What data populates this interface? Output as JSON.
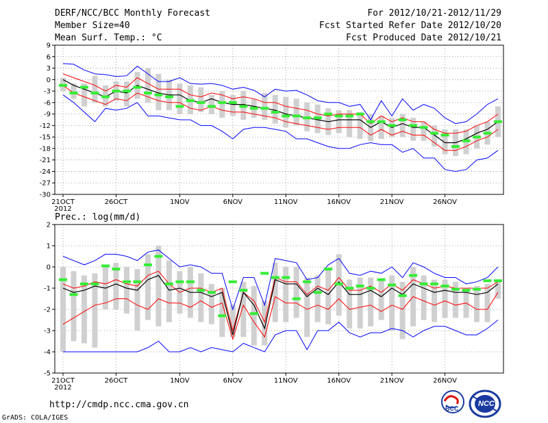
{
  "header": {
    "title": "DERF/NCC/BCC Monthly Forecast",
    "member_size": "Member Size=40",
    "period": "For 2012/10/21-2012/11/29",
    "started": "Fcst Started Refer Date 2012/10/20",
    "produced": "Fcst Produced Date 2012/10/21"
  },
  "footer": {
    "url": "http://cmdp.ncc.cma.gov.cn",
    "credit": "GrADS: COLA/IGES",
    "logo_bcc": "BCC",
    "logo_ncc": "NCC"
  },
  "colors": {
    "envelope": "#0000ff",
    "spread": "#ff0000",
    "mean": "#000000",
    "obs": "#33ee33",
    "box": "#d0d0d0"
  },
  "chart_data": [
    {
      "type": "line",
      "title": "Mean Surf. Temp.: °C",
      "x_start_label": "21OCT",
      "x_start_year": "2012",
      "xtick_labels": [
        "21OCT",
        "26OCT",
        "1NOV",
        "6NOV",
        "11NOV",
        "16NOV",
        "21NOV",
        "26NOV"
      ],
      "xtick_days": [
        0,
        5,
        11,
        16,
        21,
        26,
        31,
        36
      ],
      "ylim": [
        -30,
        9
      ],
      "yticks": [
        9,
        6,
        3,
        0,
        -3,
        -6,
        -9,
        -12,
        -15,
        -18,
        -21,
        -24,
        -27,
        -30
      ],
      "max": [
        4.2,
        4.0,
        2.5,
        1.5,
        1.3,
        0.8,
        1.0,
        3.5,
        1.5,
        -0.5,
        -0.5,
        0.5,
        -1.0,
        -1.2,
        -1.0,
        -1.5,
        -2.5,
        -2.0,
        -2.8,
        -4.5,
        -2.5,
        -3.0,
        -2.8,
        -4.0,
        -5.5,
        -6.0,
        -6.0,
        -7.0,
        -6.5,
        -10.5,
        -5.5,
        -9.5,
        -5.0,
        -8.0,
        -6.5,
        -7.5,
        -10.0,
        -11.5,
        -11.0,
        -9.0,
        -6.5,
        -5.0
      ],
      "upper": [
        1.5,
        0.5,
        -0.5,
        -1.5,
        -3.0,
        -1.5,
        -2.0,
        0.5,
        -1.0,
        -2.5,
        -2.5,
        -2.5,
        -4.0,
        -4.5,
        -3.5,
        -4.0,
        -5.0,
        -4.5,
        -5.0,
        -6.0,
        -6.0,
        -7.0,
        -7.5,
        -8.0,
        -9.0,
        -9.5,
        -9.0,
        -9.0,
        -9.0,
        -11.5,
        -9.5,
        -11.0,
        -10.0,
        -11.0,
        -11.0,
        -13.0,
        -14.0,
        -14.0,
        -13.5,
        -12.0,
        -11.0,
        -9.0
      ],
      "mean": [
        0,
        -1.5,
        -2.5,
        -3.5,
        -4.5,
        -3.0,
        -3.5,
        -1.5,
        -2.5,
        -3.5,
        -4.0,
        -4.0,
        -5.5,
        -6.0,
        -5.0,
        -6.0,
        -6.5,
        -6.5,
        -7.0,
        -7.5,
        -8.0,
        -9.0,
        -9.5,
        -10.0,
        -10.5,
        -11.0,
        -10.5,
        -10.5,
        -10.5,
        -12.5,
        -11.0,
        -12.5,
        -11.5,
        -12.5,
        -12.5,
        -14.5,
        -16.5,
        -16.5,
        -15.5,
        -14.0,
        -13.0,
        -11.0
      ],
      "lower": [
        -1.5,
        -3.5,
        -4.5,
        -5.5,
        -6.5,
        -5.0,
        -5.5,
        -3.5,
        -4.5,
        -5.5,
        -6.0,
        -6.0,
        -7.5,
        -8.0,
        -7.0,
        -8.0,
        -8.5,
        -8.5,
        -9.0,
        -9.5,
        -10.0,
        -11.0,
        -11.5,
        -12.0,
        -12.5,
        -13.0,
        -12.5,
        -12.5,
        -12.5,
        -14.5,
        -13.0,
        -14.5,
        -13.5,
        -14.5,
        -14.5,
        -16.5,
        -18.5,
        -18.5,
        -17.5,
        -16.0,
        -15.0,
        -13.0
      ],
      "min": [
        -4.0,
        -6.0,
        -8.5,
        -11.0,
        -7.5,
        -8.0,
        -7.5,
        -6.0,
        -9.5,
        -9.5,
        -10.0,
        -10.5,
        -10.5,
        -12.0,
        -12.0,
        -13.5,
        -15.5,
        -13.0,
        -12.5,
        -12.5,
        -13.0,
        -13.5,
        -15.5,
        -15.5,
        -16.5,
        -17.5,
        -18.0,
        -18.0,
        -17.0,
        -16.5,
        -17.0,
        -17.0,
        -19.0,
        -18.0,
        -20.5,
        -20.5,
        -23.5,
        -24.0,
        -23.5,
        -21.0,
        -20.5,
        -18.5
      ],
      "box_high": [
        0.5,
        -1.0,
        -1.0,
        1.0,
        -1.5,
        -0.5,
        -0.5,
        2.0,
        3.0,
        1.5,
        0.0,
        -1.0,
        -1.5,
        -2.0,
        -4.0,
        -3.0,
        -4.0,
        -3.0,
        -5.0,
        -3.5,
        -4.0,
        -4.5,
        -5.0,
        -6.0,
        -6.5,
        -7.5,
        -8.0,
        -8.0,
        -8.5,
        -9.0,
        -9.5,
        -10.0,
        -9.0,
        -10.0,
        -11.0,
        -12.0,
        -13.0,
        -13.0,
        -13.0,
        -12.0,
        -11.0,
        -7.0
      ],
      "box_low": [
        -3.0,
        -5.0,
        -7.0,
        -6.0,
        -7.0,
        -5.5,
        -7.0,
        -5.0,
        -6.0,
        -8.0,
        -8.0,
        -9.0,
        -9.0,
        -8.5,
        -9.0,
        -10.0,
        -9.5,
        -10.5,
        -10.0,
        -10.5,
        -11.5,
        -12.5,
        -12.0,
        -13.5,
        -14.0,
        -14.5,
        -14.0,
        -15.0,
        -15.5,
        -16.0,
        -15.5,
        -15.0,
        -15.0,
        -16.0,
        -16.0,
        -17.5,
        -19.5,
        -20.0,
        -19.5,
        -18.0,
        -17.0,
        -15.0
      ],
      "obs": [
        -1.5,
        -3.5,
        -2.0,
        -3.5,
        -4.5,
        -3.0,
        -3.0,
        -2.0,
        -3.5,
        -4.0,
        -4.5,
        -7.0,
        -5.5,
        -6.0,
        -7.0,
        -6.0,
        -6.0,
        -7.0,
        -7.5,
        -7.5,
        -8.5,
        -9.5,
        -9.5,
        -10.0,
        -10.0,
        -9.0,
        -9.5,
        -9.5,
        -9.0,
        -11.0,
        -11.0,
        -12.0,
        -10.5,
        -12.0,
        -12.5,
        -14.0,
        -14.5,
        -17.5,
        -16.0,
        -15.0,
        -14.0,
        -11.0
      ]
    },
    {
      "type": "line",
      "title": "Prec.: log(mm/d)",
      "x_start_label": "21OCT",
      "x_start_year": "2012",
      "xtick_labels": [
        "21OCT",
        "26OCT",
        "1NOV",
        "6NOV",
        "11NOV",
        "16NOV",
        "21NOV",
        "26NOV"
      ],
      "xtick_days": [
        0,
        5,
        11,
        16,
        21,
        26,
        31,
        36
      ],
      "ylim": [
        -5,
        2
      ],
      "yticks": [
        2,
        1,
        0,
        -1,
        -2,
        -3,
        -4,
        -5
      ],
      "max": [
        0.5,
        0.3,
        0.1,
        0.3,
        0.6,
        0.6,
        0.5,
        0.3,
        0.7,
        0.8,
        0.4,
        0,
        0.1,
        0,
        -0.3,
        -0.3,
        -2.0,
        -0.5,
        -0.5,
        -1.8,
        0.4,
        0.3,
        0.2,
        -0.6,
        -0.5,
        0.1,
        0.4,
        -0.3,
        -0.4,
        -0.2,
        -0.3,
        0,
        -0.5,
        0.2,
        0,
        -0.3,
        -0.5,
        -0.5,
        -0.8,
        -0.7,
        -0.5,
        0
      ],
      "upper": [
        -0.8,
        -1.0,
        -0.9,
        -0.7,
        -0.8,
        -0.6,
        -0.8,
        -0.9,
        -0.4,
        -0.2,
        -0.8,
        -1.2,
        -1.0,
        -1.0,
        -1.2,
        -1.0,
        -3.0,
        -1.2,
        -1.6,
        -2.6,
        -0.5,
        -0.7,
        -0.7,
        -1.3,
        -0.9,
        -1.1,
        -0.5,
        -1.1,
        -1.1,
        -0.9,
        -1.2,
        -0.8,
        -1.1,
        -0.6,
        -0.8,
        -1.0,
        -0.9,
        -1.0,
        -1.0,
        -1.0,
        -1.0,
        -0.7
      ],
      "mean": [
        -1.0,
        -1.2,
        -1.1,
        -0.9,
        -1.0,
        -0.8,
        -1.0,
        -1.1,
        -0.6,
        -0.4,
        -1.1,
        -1.0,
        -1.2,
        -1.2,
        -1.4,
        -1.2,
        -3.2,
        -1.2,
        -1.8,
        -2.9,
        -0.6,
        -0.8,
        -0.8,
        -1.4,
        -1.0,
        -1.3,
        -0.7,
        -1.3,
        -1.3,
        -1.1,
        -1.4,
        -1.0,
        -1.3,
        -0.8,
        -1.0,
        -1.2,
        -1.1,
        -1.2,
        -1.2,
        -1.3,
        -1.2,
        -0.8
      ],
      "lower": [
        -2.7,
        -2.4,
        -2.1,
        -1.8,
        -1.7,
        -1.5,
        -1.5,
        -1.8,
        -2.0,
        -1.5,
        -1.7,
        -1.7,
        -1.9,
        -1.6,
        -1.9,
        -1.7,
        -3.4,
        -1.8,
        -2.6,
        -3.3,
        -1.4,
        -1.7,
        -1.7,
        -2.0,
        -1.8,
        -2.0,
        -1.5,
        -2.0,
        -1.9,
        -1.8,
        -2.1,
        -1.8,
        -2.0,
        -1.4,
        -1.6,
        -1.8,
        -1.6,
        -1.8,
        -1.7,
        -2.0,
        -2.0,
        -1.2
      ],
      "min": [
        -4,
        -4,
        -4,
        -4,
        -4,
        -4,
        -4,
        -4,
        -3.8,
        -3.5,
        -4,
        -4,
        -3.8,
        -4,
        -3.8,
        -3.9,
        -4,
        -3.6,
        -3.8,
        -4,
        -3.2,
        -3,
        -3,
        -3.9,
        -3,
        -3,
        -2.6,
        -3.1,
        -3.3,
        -3.1,
        -3.1,
        -2.9,
        -3,
        -3.3,
        -3.0,
        -2.8,
        -2.8,
        -3.0,
        -3.2,
        -3.2,
        -2.9,
        -2.5
      ],
      "box_high": [
        0,
        -0.2,
        -0.4,
        -0.3,
        0.1,
        0.2,
        0,
        -0.1,
        0.6,
        1.0,
        0.3,
        -0.2,
        0,
        -0.3,
        -0.8,
        -1.0,
        -1.8,
        -0.7,
        -0.9,
        -1.6,
        0.2,
        0,
        0,
        -0.5,
        -0.4,
        -0.1,
        0.6,
        -0.6,
        -0.5,
        -0.5,
        -0.6,
        -0.4,
        -0.7,
        0,
        -0.4,
        -0.6,
        -0.6,
        -0.7,
        -1.0,
        -0.9,
        -0.8,
        -0.6
      ],
      "box_low": [
        -4.0,
        -3.5,
        -3.6,
        -3.8,
        -2.0,
        -2.0,
        -2.2,
        -3.0,
        -2.5,
        -2.8,
        -2.6,
        -2.2,
        -2.4,
        -2.6,
        -2.7,
        -3.3,
        -3.3,
        -3.3,
        -3.7,
        -3.7,
        -2.6,
        -2.6,
        -2.4,
        -3.3,
        -2.6,
        -2.7,
        -2.3,
        -2.9,
        -2.9,
        -2.8,
        -2.5,
        -3.0,
        -3.4,
        -2.8,
        -2.5,
        -2.6,
        -2.4,
        -2.4,
        -2.4,
        -2.6,
        -2.6,
        -1.5
      ],
      "obs": [
        -0.6,
        -1.3,
        -0.8,
        -0.8,
        0.05,
        -0.1,
        -0.7,
        -0.7,
        0.1,
        0.5,
        -0.8,
        -0.7,
        -0.7,
        -1.1,
        -1.2,
        -2.3,
        -0.7,
        -1.1,
        -2.2,
        -0.3,
        -0.5,
        -0.5,
        -1.5,
        -0.7,
        -1.2,
        -0.1,
        -0.8,
        -1.0,
        -0.9,
        -1.0,
        -0.6,
        -0.85,
        -1.35,
        -0.4,
        -0.8,
        -0.8,
        -0.9,
        -1.05,
        -1.1,
        -1.05,
        -0.65,
        -0.65
      ]
    }
  ]
}
